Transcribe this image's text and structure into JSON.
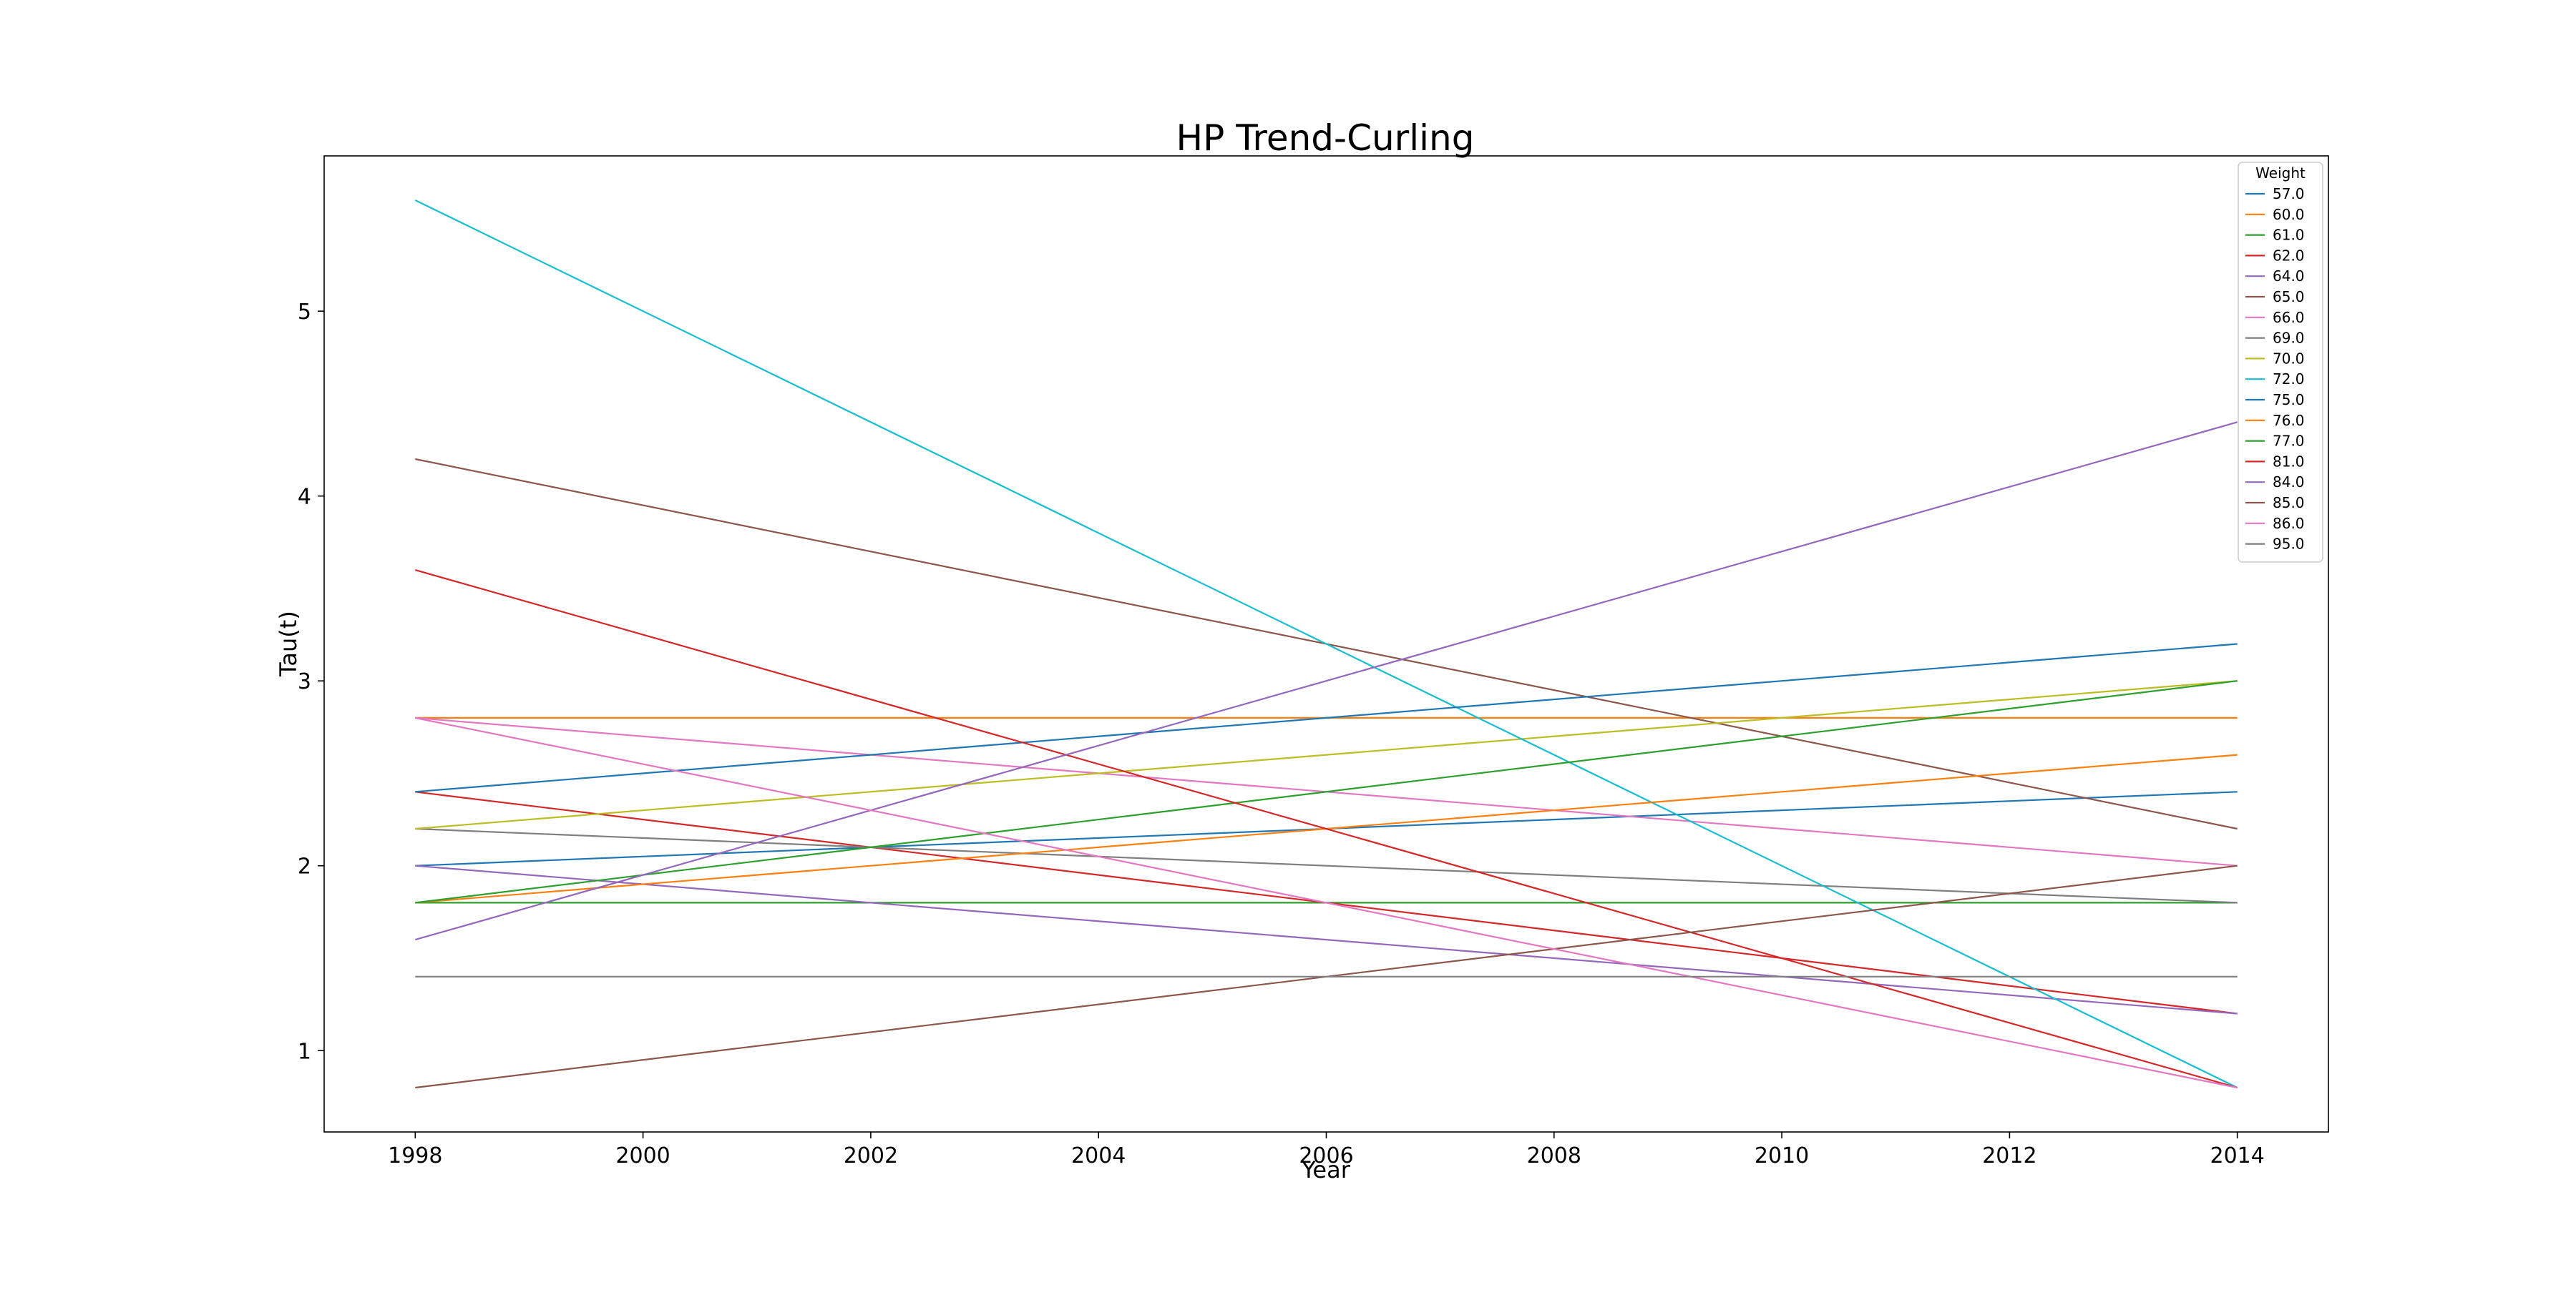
{
  "chart_data": {
    "type": "line",
    "title": "HP Trend-Curling",
    "xlabel": "Year",
    "ylabel": "Tau(t)",
    "xlim": [
      1997.2,
      2014.8
    ],
    "ylim": [
      0.56,
      5.84
    ],
    "x_ticks": [
      1998,
      2000,
      2002,
      2004,
      2006,
      2008,
      2010,
      2012,
      2014
    ],
    "y_ticks": [
      1,
      2,
      3,
      4,
      5
    ],
    "grid": false,
    "legend": {
      "title": "Weight",
      "placement": "top-right"
    },
    "series": [
      {
        "name": "57.0",
        "color": "#1f77b4",
        "x": [
          1998,
          2014
        ],
        "y": [
          2.0,
          2.4
        ]
      },
      {
        "name": "60.0",
        "color": "#ff7f0e",
        "x": [
          1998,
          2014
        ],
        "y": [
          2.8,
          2.8
        ]
      },
      {
        "name": "61.0",
        "color": "#2ca02c",
        "x": [
          1998,
          2014
        ],
        "y": [
          1.8,
          1.8
        ]
      },
      {
        "name": "62.0",
        "color": "#d62728",
        "x": [
          1998,
          2014
        ],
        "y": [
          2.4,
          1.2
        ]
      },
      {
        "name": "64.0",
        "color": "#9467bd",
        "x": [
          1998,
          2014
        ],
        "y": [
          2.0,
          1.2
        ]
      },
      {
        "name": "65.0",
        "color": "#8c564b",
        "x": [
          1998,
          2014
        ],
        "y": [
          4.2,
          2.2
        ]
      },
      {
        "name": "66.0",
        "color": "#e377c2",
        "x": [
          1998,
          2014
        ],
        "y": [
          2.8,
          2.0
        ]
      },
      {
        "name": "69.0",
        "color": "#7f7f7f",
        "x": [
          1998,
          2014
        ],
        "y": [
          2.2,
          1.8
        ]
      },
      {
        "name": "70.0",
        "color": "#bcbd22",
        "x": [
          1998,
          2014
        ],
        "y": [
          2.2,
          3.0
        ]
      },
      {
        "name": "72.0",
        "color": "#17becf",
        "x": [
          1998,
          2014
        ],
        "y": [
          5.6,
          0.8
        ]
      },
      {
        "name": "75.0",
        "color": "#1f77b4",
        "x": [
          1998,
          2014
        ],
        "y": [
          2.4,
          3.2
        ]
      },
      {
        "name": "76.0",
        "color": "#ff7f0e",
        "x": [
          1998,
          2014
        ],
        "y": [
          1.8,
          2.6
        ]
      },
      {
        "name": "77.0",
        "color": "#2ca02c",
        "x": [
          1998,
          2014
        ],
        "y": [
          1.8,
          3.0
        ]
      },
      {
        "name": "81.0",
        "color": "#d62728",
        "x": [
          1998,
          2014
        ],
        "y": [
          3.6,
          0.8
        ]
      },
      {
        "name": "84.0",
        "color": "#9467bd",
        "x": [
          1998,
          2014
        ],
        "y": [
          1.6,
          4.4
        ]
      },
      {
        "name": "85.0",
        "color": "#8c564b",
        "x": [
          1998,
          2014
        ],
        "y": [
          0.8,
          2.0
        ]
      },
      {
        "name": "86.0",
        "color": "#e377c2",
        "x": [
          1998,
          2014
        ],
        "y": [
          2.8,
          0.8
        ]
      },
      {
        "name": "95.0",
        "color": "#7f7f7f",
        "x": [
          1998,
          2014
        ],
        "y": [
          1.4,
          1.4
        ]
      }
    ]
  }
}
